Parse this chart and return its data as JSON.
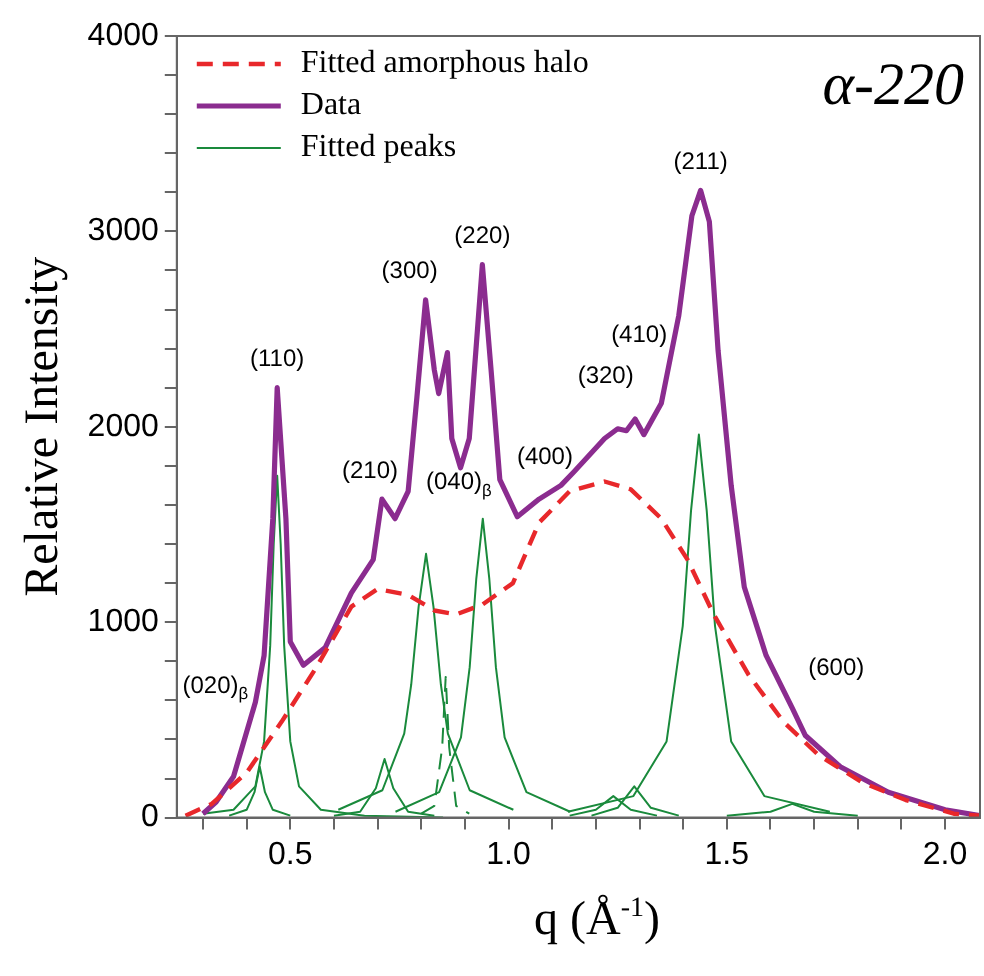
{
  "chart_data": {
    "type": "line",
    "xlabel": "q (Å$^{-1}$)",
    "ylabel": "Relative Intensity",
    "xlim": [
      0.24,
      2.08
    ],
    "xticks": [
      {
        "value": 0.3,
        "label": null
      },
      {
        "value": 0.4,
        "label": null
      },
      0.5,
      {
        "value": 0.6,
        "label": null
      },
      {
        "value": 0.7,
        "label": null
      },
      {
        "value": 0.8,
        "label": null
      },
      {
        "value": 0.9,
        "label": null
      },
      {
        "value": 1,
        "label": "1.0"
      },
      {
        "value": 1.1,
        "label": null
      },
      {
        "value": 1.2,
        "label": null
      },
      {
        "value": 1.3,
        "label": null
      },
      {
        "value": 1.4,
        "label": null
      },
      1.5,
      {
        "value": 1.6,
        "label": null
      },
      {
        "value": 1.7,
        "label": null
      },
      {
        "value": 1.8,
        "label": null
      },
      {
        "value": 1.9,
        "label": null
      },
      {
        "value": 2,
        "label": "2.0"
      }
    ],
    "ylim": [
      0,
      4000
    ],
    "yticks": [
      0,
      {
        "value": 200,
        "label": null
      },
      {
        "value": 400,
        "label": null
      },
      {
        "value": 600,
        "label": null
      },
      {
        "value": 800,
        "label": null
      },
      1000,
      {
        "value": 1200,
        "label": null
      },
      {
        "value": 1400,
        "label": null
      },
      {
        "value": 1600,
        "label": null
      },
      {
        "value": 1800,
        "label": null
      },
      2000,
      {
        "value": 2200,
        "label": null
      },
      {
        "value": 2400,
        "label": null
      },
      {
        "value": 2600,
        "label": null
      },
      {
        "value": 2800,
        "label": null
      },
      3000,
      {
        "value": 3200,
        "label": null
      },
      {
        "value": 3400,
        "label": null
      },
      {
        "value": 3600,
        "label": null
      },
      {
        "value": 3800,
        "label": null
      },
      4000
    ],
    "grid": false,
    "legend": "top left",
    "marker": "none",
    "series": [
      {
        "name": "Fitted amorphous halo",
        "color": "#e8282b",
        "line_style": "dashed",
        "x": [
          0.26,
          0.32,
          0.4,
          0.48,
          0.56,
          0.64,
          0.7,
          0.77,
          0.83,
          0.88,
          0.94,
          1.01,
          1.07,
          1.14,
          1.22,
          1.28,
          1.35,
          1.41,
          1.47,
          1.55,
          1.63,
          1.71,
          1.81,
          1.91,
          2.02,
          2.08
        ],
        "values": [
          10,
          70,
          230,
          490,
          770,
          1080,
          1170,
          1140,
          1060,
          1040,
          1090,
          1200,
          1510,
          1670,
          1720,
          1680,
          1530,
          1320,
          1040,
          730,
          490,
          320,
          180,
          90,
          20,
          10
        ]
      },
      {
        "name": "Data",
        "color": "#8b2c8f",
        "line_style": "solid",
        "x": [
          0.3,
          0.33,
          0.37,
          0.42,
          0.44,
          0.46,
          0.47,
          0.49,
          0.5,
          0.53,
          0.58,
          0.64,
          0.69,
          0.71,
          0.74,
          0.77,
          0.79,
          0.81,
          0.83,
          0.84,
          0.86,
          0.87,
          0.89,
          0.91,
          0.94,
          0.96,
          0.98,
          1.02,
          1.07,
          1.12,
          1.15,
          1.22,
          1.25,
          1.27,
          1.29,
          1.31,
          1.35,
          1.39,
          1.42,
          1.44,
          1.46,
          1.48,
          1.51,
          1.54,
          1.59,
          1.65,
          1.68,
          1.76,
          1.87,
          2.0,
          2.08
        ],
        "values": [
          20,
          80,
          210,
          590,
          830,
          1530,
          2200,
          1530,
          900,
          780,
          870,
          1150,
          1320,
          1630,
          1530,
          1670,
          2150,
          2650,
          2290,
          2170,
          2380,
          1940,
          1790,
          1940,
          2830,
          2290,
          1730,
          1540,
          1630,
          1700,
          1770,
          1940,
          1990,
          1980,
          2040,
          1960,
          2120,
          2570,
          3080,
          3210,
          3050,
          2390,
          1700,
          1180,
          830,
          560,
          420,
          260,
          130,
          40,
          10
        ]
      },
      {
        "name": "Fitted peaks",
        "color": "#1a8a3c",
        "line_style": "solid",
        "x": [
          0.3,
          0.37,
          0.42,
          0.44,
          0.454,
          0.462,
          0.47,
          0.478,
          0.486,
          0.5,
          0.52,
          0.57,
          0.67,
          0.85
        ],
        "values": [
          20,
          40,
          160,
          390,
          880,
          1400,
          1750,
          1400,
          880,
          390,
          160,
          40,
          10,
          0
        ]
      },
      {
        "color": "#1a8a3c",
        "line_style": "solid",
        "x": [
          0.36,
          0.4,
          0.418,
          0.43,
          0.442,
          0.46,
          0.5
        ],
        "values": [
          10,
          40,
          130,
          260,
          130,
          40,
          10
        ]
      },
      {
        "color": "#1a8a3c",
        "line_style": "solid",
        "x": [
          0.6,
          0.66,
          0.696,
          0.716,
          0.736,
          0.77,
          0.83
        ],
        "values": [
          10,
          30,
          150,
          300,
          150,
          30,
          10
        ]
      },
      {
        "color": "#1a8a3c",
        "line_style": "solid",
        "x": [
          0.61,
          0.711,
          0.761,
          0.777,
          0.794,
          0.811,
          0.828,
          0.845,
          0.861,
          0.911,
          1.011
        ],
        "values": [
          40,
          140,
          430,
          680,
          1080,
          1350,
          1080,
          680,
          430,
          140,
          40
        ]
      },
      {
        "color": "#1a8a3c",
        "line_style": "dashed",
        "x": [
          0.8,
          0.83,
          0.848,
          0.856,
          0.864,
          0.88,
          0.91
        ],
        "values": [
          20,
          60,
          360,
          720,
          360,
          60,
          20
        ]
      },
      {
        "color": "#1a8a3c",
        "line_style": "solid",
        "x": [
          0.741,
          0.841,
          0.891,
          0.911,
          0.926,
          0.941,
          0.956,
          0.971,
          0.991,
          1.041,
          1.141
        ],
        "values": [
          30,
          130,
          410,
          770,
          1220,
          1530,
          1220,
          770,
          410,
          130,
          30
        ]
      },
      {
        "color": "#1a8a3c",
        "line_style": "solid",
        "x": [
          1.14,
          1.2,
          1.24,
          1.28,
          1.34
        ],
        "values": [
          10,
          40,
          110,
          40,
          10
        ]
      },
      {
        "color": "#1a8a3c",
        "line_style": "solid",
        "x": [
          1.19,
          1.25,
          1.288,
          1.326,
          1.39
        ],
        "values": [
          10,
          50,
          160,
          50,
          10
        ]
      },
      {
        "color": "#1a8a3c",
        "line_style": "solid",
        "x": [
          1.136,
          1.286,
          1.362,
          1.399,
          1.418,
          1.436,
          1.454,
          1.473,
          1.51,
          1.586,
          1.736
        ],
        "values": [
          30,
          110,
          390,
          980,
          1570,
          1960,
          1570,
          980,
          390,
          110,
          30
        ]
      },
      {
        "color": "#1a8a3c",
        "line_style": "solid",
        "x": [
          1.5,
          1.6,
          1.65,
          1.7,
          1.8
        ],
        "values": [
          10,
          30,
          70,
          30,
          10
        ]
      }
    ],
    "annotations": [
      "α-220",
      {
        "text": "(020)$_{β}$",
        "x": 0.42,
        "y": 590
      },
      {
        "text": "(110)",
        "x": 0.47,
        "y": 2200
      },
      {
        "text": "(210)",
        "x": 0.71,
        "y": 1630
      },
      {
        "text": "(300)",
        "x": 0.81,
        "y": 2650
      },
      {
        "text": "(220)",
        "x": 0.94,
        "y": 2830
      },
      {
        "text": "(040)$_{β}$",
        "x": 0.941,
        "y": 1530
      },
      {
        "text": "(400)",
        "x": 1.12,
        "y": 1700
      },
      {
        "text": "(320)",
        "x": 1.25,
        "y": 1990
      },
      {
        "text": "(410)",
        "x": 1.29,
        "y": 2040
      },
      {
        "text": "(211)",
        "x": 1.44,
        "y": 3210
      },
      {
        "text": "(600)",
        "x": 1.65,
        "y": 560
      }
    ]
  }
}
